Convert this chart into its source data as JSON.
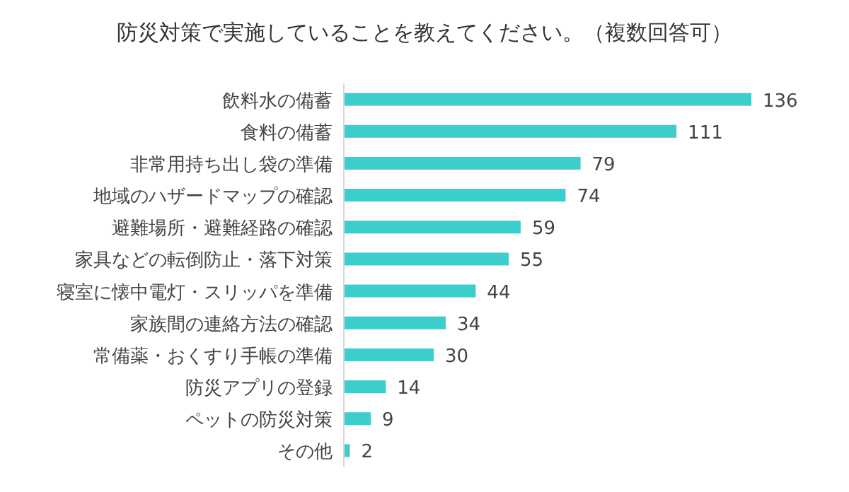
{
  "chart_data": {
    "type": "bar",
    "orientation": "horizontal",
    "title": "防災対策で実施していることを教えてください。（複数回答可）",
    "categories": [
      "飲料水の備蓄",
      "食料の備蓄",
      "非常用持ち出し袋の準備",
      "地域のハザードマップの確認",
      "避難場所・避難経路の確認",
      "家具などの転倒防止・落下対策",
      "寝室に懐中電灯・スリッパを準備",
      "家族間の連絡方法の確認",
      "常備薬・おくすり手帳の準備",
      "防災アプリの登録",
      "ペットの防災対策",
      "その他"
    ],
    "values": [
      136,
      111,
      79,
      74,
      59,
      55,
      44,
      34,
      30,
      14,
      9,
      2
    ],
    "color": "#3ccdcd",
    "data_labels": true
  }
}
